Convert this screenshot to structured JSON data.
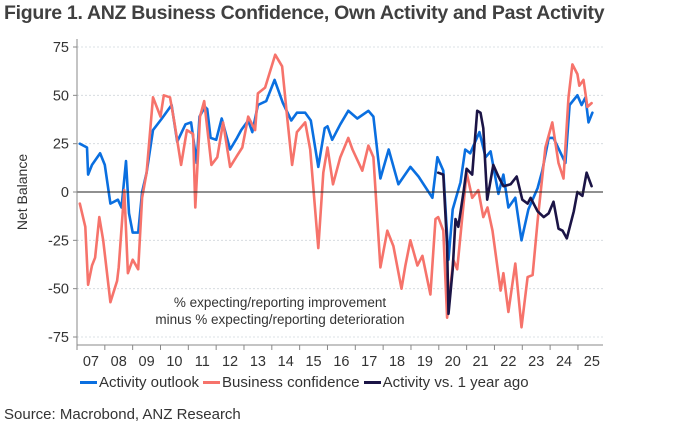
{
  "figure": {
    "title": "Figure 1.  ANZ Business Confidence, Own Activity and Past Activity",
    "source": "Source: Macrobond, ANZ Research"
  },
  "chart_data": {
    "type": "line",
    "title": "Figure 1.  ANZ Business Confidence, Own Activity and Past Activity",
    "xlabel": "",
    "ylabel": "Net Balance",
    "xlim": [
      2007,
      2025.9
    ],
    "ylim": [
      -75,
      75
    ],
    "yticks": [
      75,
      50,
      25,
      0,
      -25,
      -50,
      -75
    ],
    "ytick_labels": [
      "75",
      "50",
      "25",
      "0",
      "-25",
      "-50",
      "-75"
    ],
    "xtick_labels": [
      "07",
      "08",
      "09",
      "10",
      "11",
      "12",
      "13",
      "14",
      "15",
      "16",
      "17",
      "18",
      "19",
      "20",
      "21",
      "22",
      "23",
      "24",
      "25"
    ],
    "grid": true,
    "legend_position": "bottom",
    "annotation": [
      "% expecting/reporting improvement",
      "minus % expecting/reporting deterioration"
    ],
    "series": [
      {
        "name": "Activity outlook",
        "color": "#0A6FE0",
        "x": [
          2007.1,
          2007.36,
          2007.4,
          2007.54,
          2007.83,
          2008.0,
          2008.2,
          2008.47,
          2008.6,
          2008.76,
          2008.87,
          2009.0,
          2009.2,
          2009.34,
          2009.5,
          2009.73,
          2010.05,
          2010.4,
          2010.6,
          2010.9,
          2011.1,
          2011.3,
          2011.4,
          2011.6,
          2011.68,
          2011.8,
          2012.0,
          2012.2,
          2012.5,
          2012.75,
          2012.9,
          2013.15,
          2013.3,
          2013.5,
          2013.8,
          2014.1,
          2014.4,
          2014.7,
          2014.9,
          2015.2,
          2015.4,
          2015.67,
          2015.9,
          2016.0,
          2016.17,
          2016.46,
          2016.75,
          2017.07,
          2017.47,
          2017.65,
          2017.9,
          2018.2,
          2018.55,
          2018.98,
          2019.27,
          2019.77,
          2019.95,
          2020.16,
          2020.35,
          2020.5,
          2020.78,
          2020.95,
          2021.13,
          2021.46,
          2021.68,
          2021.86,
          2022.14,
          2022.32,
          2022.5,
          2022.75,
          2022.97,
          2023.22,
          2023.55,
          2023.72,
          2023.95,
          2024.12,
          2024.55,
          2024.7,
          2024.98,
          2025.13,
          2025.27,
          2025.38,
          2025.52
        ],
        "y": [
          25,
          23,
          9,
          14,
          20,
          14,
          -6,
          -4,
          -8,
          16,
          -11,
          -21,
          -21,
          0,
          10,
          32,
          38,
          45,
          26,
          35,
          36,
          15,
          39,
          44,
          43,
          28,
          27,
          38,
          22,
          28,
          32,
          37,
          31,
          45,
          47,
          58,
          46,
          37,
          41,
          41,
          37,
          13,
          33,
          34,
          27,
          35,
          42,
          38,
          42,
          39,
          7,
          22,
          4,
          13,
          8,
          -3,
          18,
          11,
          -35,
          -9,
          5,
          22,
          20,
          31,
          18,
          21,
          -1,
          9,
          -8,
          -3,
          -25,
          -9,
          2,
          11,
          28,
          28,
          15,
          45,
          50,
          45,
          49,
          36,
          41
        ]
      },
      {
        "name": "Business confidence",
        "color": "#F6736B",
        "x": [
          2007.1,
          2007.3,
          2007.4,
          2007.54,
          2007.65,
          2007.8,
          2007.94,
          2008.2,
          2008.44,
          2008.5,
          2008.7,
          2008.83,
          2009.0,
          2009.2,
          2009.34,
          2009.5,
          2009.73,
          2010.0,
          2010.12,
          2010.34,
          2010.5,
          2010.74,
          2010.95,
          2011.17,
          2011.25,
          2011.42,
          2011.57,
          2011.83,
          2012.04,
          2012.25,
          2012.5,
          2012.76,
          2012.94,
          2013.15,
          2013.4,
          2013.5,
          2013.76,
          2014.12,
          2014.37,
          2014.55,
          2014.73,
          2014.9,
          2015.2,
          2015.38,
          2015.67,
          2015.85,
          2016.0,
          2016.2,
          2016.46,
          2016.75,
          2016.9,
          2017.25,
          2017.47,
          2017.65,
          2017.9,
          2018.15,
          2018.37,
          2018.66,
          2018.8,
          2018.98,
          2019.23,
          2019.41,
          2019.7,
          2019.88,
          2019.98,
          2020.16,
          2020.3,
          2020.52,
          2020.66,
          2021.0,
          2021.2,
          2021.42,
          2021.6,
          2021.75,
          2021.93,
          2022.22,
          2022.32,
          2022.5,
          2022.75,
          2022.97,
          2023.19,
          2023.37,
          2023.55,
          2023.83,
          2024.08,
          2024.3,
          2024.48,
          2024.66,
          2024.8,
          2024.98,
          2025.05,
          2025.2,
          2025.34,
          2025.49
        ],
        "y": [
          -6,
          -18,
          -48,
          -38,
          -34,
          -13,
          -25,
          -57,
          -46,
          -39,
          1,
          -42,
          -35,
          -40,
          -3,
          10,
          49,
          39,
          50,
          49,
          36,
          14,
          32,
          30,
          -8,
          39,
          47,
          14,
          18,
          36,
          13,
          19,
          23,
          39,
          32,
          51,
          54,
          71,
          65,
          39,
          14,
          31,
          36,
          22,
          -29,
          10,
          23,
          4,
          18,
          28,
          22,
          11,
          24,
          18,
          -39,
          -20,
          -28,
          -50,
          -38,
          -25,
          -38,
          -33,
          -53,
          -14,
          -13,
          -20,
          -65,
          -35,
          -40,
          10,
          -3,
          1,
          -13,
          -8,
          -20,
          -51,
          -42,
          -62,
          -37,
          -70,
          -44,
          -43,
          -15,
          23,
          36,
          15,
          7,
          49,
          66,
          61,
          55,
          58,
          44,
          46
        ]
      },
      {
        "name": "Activity vs. 1 year ago",
        "color": "#1B1446",
        "x": [
          2019.98,
          2020.16,
          2020.3,
          2020.35,
          2020.5,
          2020.6,
          2020.7,
          2020.9,
          2021.0,
          2021.2,
          2021.38,
          2021.5,
          2021.6,
          2021.74,
          2021.96,
          2022.14,
          2022.32,
          2022.58,
          2022.8,
          2023.0,
          2023.19,
          2023.3,
          2023.55,
          2023.77,
          2023.95,
          2024.12,
          2024.3,
          2024.45,
          2024.6,
          2024.85,
          2024.98,
          2025.16,
          2025.31,
          2025.49
        ],
        "y": [
          10,
          9,
          -28,
          -63,
          -40,
          -14,
          -18,
          1,
          12,
          9,
          42,
          41,
          33,
          -4,
          14,
          8,
          3,
          4,
          8,
          -4,
          -6,
          -3,
          -10,
          -13,
          -11,
          -5,
          -19,
          -20,
          -24,
          -10,
          0,
          -2,
          10,
          3
        ]
      }
    ]
  }
}
